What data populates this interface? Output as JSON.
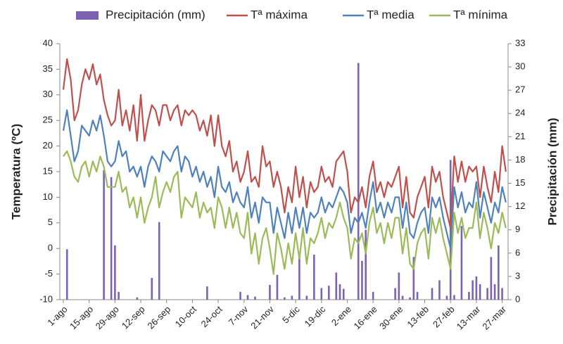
{
  "chart_data": {
    "type": "line",
    "categories": [
      "1-ago",
      null,
      null,
      null,
      null,
      null,
      null,
      "15-ago",
      null,
      null,
      null,
      null,
      null,
      null,
      "29-ago",
      null,
      null,
      null,
      null,
      null,
      null,
      "12-sep",
      null,
      null,
      null,
      null,
      null,
      null,
      "26-sep",
      null,
      null,
      null,
      null,
      null,
      null,
      "10-oct",
      null,
      null,
      null,
      null,
      null,
      null,
      "24-oct",
      null,
      null,
      null,
      null,
      null,
      null,
      "7-nov",
      null,
      null,
      null,
      null,
      null,
      null,
      "21-nov",
      null,
      null,
      null,
      null,
      null,
      null,
      "5-dic",
      null,
      null,
      null,
      null,
      null,
      null,
      "19-dic",
      null,
      null,
      null,
      null,
      null,
      null,
      "2-ene",
      null,
      null,
      null,
      null,
      null,
      null,
      "16-ene",
      null,
      null,
      null,
      null,
      null,
      null,
      "30-ene",
      null,
      null,
      null,
      null,
      null,
      null,
      "13-feb",
      null,
      null,
      null,
      null,
      null,
      null,
      "27-feb",
      null,
      null,
      null,
      null,
      null,
      null,
      "13-mar",
      null,
      null,
      null,
      null,
      null,
      null,
      "27-mar",
      null
    ],
    "series": [
      {
        "name": "Precipitación (mm)",
        "type": "bar",
        "axis": "y2",
        "color": "#7b62b3",
        "values": [
          0,
          6.5,
          0,
          0,
          0,
          0,
          0,
          0,
          0,
          0,
          0,
          16.7,
          0,
          15.8,
          7,
          1,
          0,
          0,
          0,
          0,
          0.3,
          0,
          0,
          0,
          2.8,
          0,
          10,
          0,
          0,
          0,
          0,
          0,
          0,
          0,
          0,
          0,
          0,
          0,
          0,
          1.7,
          0,
          0,
          0,
          0,
          0,
          0,
          0,
          0,
          1,
          0,
          0.6,
          0,
          0.4,
          0,
          0,
          0,
          1.9,
          0,
          3.2,
          0,
          0.3,
          0,
          0.5,
          0,
          6,
          0,
          0.5,
          0,
          5.8,
          0,
          1.5,
          0,
          1.8,
          0,
          3.5,
          2,
          1.4,
          0,
          0,
          0,
          30.5,
          5,
          9,
          0,
          1,
          0,
          0,
          0,
          0,
          0,
          1.5,
          3.5,
          0.5,
          0,
          0.3,
          5.5,
          1,
          0,
          0,
          0,
          1.5,
          0,
          2.5,
          0,
          0.5,
          18,
          0.6,
          0,
          9.5,
          0,
          1,
          2.5,
          3,
          2,
          0,
          1.5,
          5.5,
          2,
          7,
          1.5,
          0
        ]
      },
      {
        "name": "Tª máxima",
        "type": "line",
        "color": "#c0504d",
        "values": [
          31,
          37,
          33,
          25,
          27,
          32,
          35,
          33,
          36,
          32,
          34,
          29,
          26,
          24,
          25,
          31,
          24,
          27,
          23,
          28,
          21,
          30,
          21,
          25,
          28,
          27,
          24,
          28,
          28,
          25,
          27,
          28,
          24,
          27,
          26,
          27,
          26,
          23,
          25,
          22,
          26,
          20,
          26,
          20,
          18,
          21,
          15,
          17,
          13,
          15,
          19,
          13,
          14,
          12,
          20,
          16,
          17,
          12,
          15,
          12,
          7,
          12,
          9,
          16,
          10,
          14,
          8,
          13,
          11,
          12,
          16,
          13,
          14,
          12,
          17,
          18,
          19,
          15,
          7,
          10,
          9,
          12,
          8,
          14,
          17,
          11,
          13,
          10,
          13,
          12,
          14,
          16,
          8,
          14,
          7,
          6,
          10,
          12,
          14,
          8,
          16,
          13,
          15,
          10,
          7,
          4,
          18,
          13,
          17,
          13,
          16,
          15,
          16,
          10,
          16,
          12,
          9,
          15,
          11,
          20,
          15
        ]
      },
      {
        "name": "Tª media",
        "type": "line",
        "color": "#4f81bd",
        "values": [
          23,
          27,
          22,
          17,
          19,
          24,
          23,
          22,
          25,
          23,
          26,
          22,
          17,
          16,
          17,
          21,
          18,
          19,
          15,
          16,
          14,
          16,
          12,
          16,
          18,
          17,
          15,
          19,
          18,
          17,
          19,
          20,
          15,
          18,
          17,
          14,
          16,
          13,
          15,
          12,
          14,
          10,
          16,
          12,
          11,
          13,
          9,
          11,
          9,
          8,
          12,
          6,
          9,
          5,
          10,
          9,
          9,
          3,
          8,
          5,
          2,
          7,
          3,
          8,
          4,
          8,
          3,
          7,
          6,
          7,
          10,
          7,
          9,
          8,
          10,
          12,
          11,
          9,
          3,
          6,
          5,
          7,
          4,
          9,
          13,
          7,
          9,
          6,
          9,
          7,
          10,
          10,
          4,
          9,
          3,
          2,
          5,
          7,
          8,
          3,
          10,
          8,
          10,
          6,
          3,
          0,
          12,
          8,
          11,
          7,
          9,
          8,
          13,
          6,
          11,
          8,
          5,
          9,
          7,
          12,
          9
        ]
      },
      {
        "name": "Tª mínima",
        "type": "line",
        "color": "#9bbb59",
        "values": [
          18,
          19,
          17,
          14,
          13,
          16,
          17,
          14,
          17,
          15,
          18,
          16,
          12,
          12,
          12,
          15,
          11,
          12,
          8,
          10,
          6,
          10,
          5,
          8,
          10,
          14,
          8,
          11,
          13,
          11,
          14,
          15,
          6,
          10,
          9,
          8,
          11,
          6,
          9,
          7,
          8,
          4,
          10,
          8,
          4,
          8,
          4,
          7,
          3,
          2,
          7,
          -1,
          3,
          -3,
          2,
          4,
          0,
          -5,
          3,
          0,
          -4,
          1,
          -3,
          3,
          -2,
          4,
          -3,
          2,
          1,
          3,
          6,
          2,
          5,
          4,
          6,
          9,
          6,
          4,
          -2,
          2,
          1,
          3,
          -1,
          5,
          8,
          3,
          5,
          1,
          5,
          2,
          6,
          6,
          -1,
          4,
          -3,
          -4,
          1,
          3,
          4,
          -2,
          6,
          3,
          6,
          2,
          -1,
          -4,
          7,
          3,
          6,
          2,
          4,
          4,
          9,
          2,
          7,
          4,
          0,
          5,
          3,
          7,
          4
        ]
      }
    ],
    "y_label": "Temperatura (ºC)",
    "y2_label": "Precipitación (mm)",
    "ylim": [
      -10,
      40
    ],
    "yticks": [
      -10,
      -5,
      0,
      5,
      10,
      15,
      20,
      25,
      30,
      35,
      40
    ],
    "y2lim": [
      0,
      33
    ],
    "y2ticks": [
      0,
      3,
      6,
      9,
      12,
      15,
      18,
      21,
      24,
      27,
      30,
      33
    ],
    "legend": "top"
  }
}
